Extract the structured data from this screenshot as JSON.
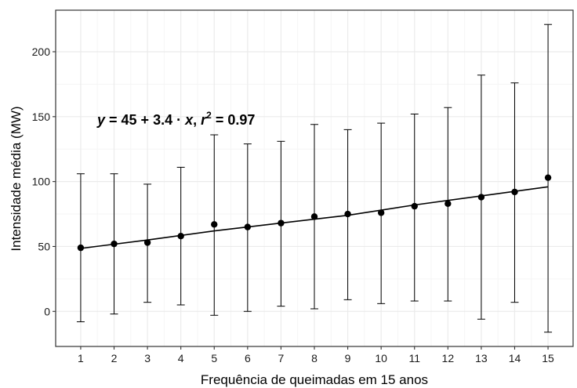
{
  "chart_data": {
    "type": "scatter",
    "xlabel": "Frequência de queimadas em 15 anos",
    "ylabel": "Intensidade média (MW)",
    "equation": {
      "y": "y",
      "eq": " = 45 + 3.4 · ",
      "x": "x",
      "comma": ",  ",
      "r": "r",
      "sup": "2",
      "val": " = 0.97"
    },
    "x_ticks": [
      1,
      2,
      3,
      4,
      5,
      6,
      7,
      8,
      9,
      10,
      11,
      12,
      13,
      14,
      15
    ],
    "y_ticks": [
      0,
      50,
      100,
      150,
      200
    ],
    "xlim": [
      0.25,
      15.75
    ],
    "ylim": [
      -27,
      232
    ],
    "grid": true,
    "points": [
      {
        "x": 1,
        "y": 49,
        "low": -8,
        "high": 106
      },
      {
        "x": 2,
        "y": 52,
        "low": -2,
        "high": 106
      },
      {
        "x": 3,
        "y": 53,
        "low": 7,
        "high": 98
      },
      {
        "x": 4,
        "y": 58,
        "low": 5,
        "high": 111
      },
      {
        "x": 5,
        "y": 67,
        "low": -3,
        "high": 136
      },
      {
        "x": 6,
        "y": 65,
        "low": 0,
        "high": 129
      },
      {
        "x": 7,
        "y": 68,
        "low": 4,
        "high": 131
      },
      {
        "x": 8,
        "y": 73,
        "low": 2,
        "high": 144
      },
      {
        "x": 9,
        "y": 75,
        "low": 9,
        "high": 140
      },
      {
        "x": 10,
        "y": 76,
        "low": 6,
        "high": 145
      },
      {
        "x": 11,
        "y": 81,
        "low": 8,
        "high": 152
      },
      {
        "x": 12,
        "y": 83,
        "low": 8,
        "high": 157
      },
      {
        "x": 13,
        "y": 88,
        "low": -6,
        "high": 182
      },
      {
        "x": 14,
        "y": 92,
        "low": 7,
        "high": 176
      },
      {
        "x": 15,
        "y": 103,
        "low": -16,
        "high": 221
      }
    ],
    "fit_line": [
      {
        "x": 1,
        "y": 48.5
      },
      {
        "x": 3,
        "y": 55
      },
      {
        "x": 5,
        "y": 62
      },
      {
        "x": 7,
        "y": 68
      },
      {
        "x": 9,
        "y": 74
      },
      {
        "x": 11,
        "y": 82
      },
      {
        "x": 13,
        "y": 89
      },
      {
        "x": 15,
        "y": 96
      }
    ],
    "colors": {
      "panel_border": "#333333",
      "grid_major": "#ebebeb",
      "grid_minor": "#f5f5f5",
      "points": "#000000",
      "line": "#000000"
    }
  }
}
